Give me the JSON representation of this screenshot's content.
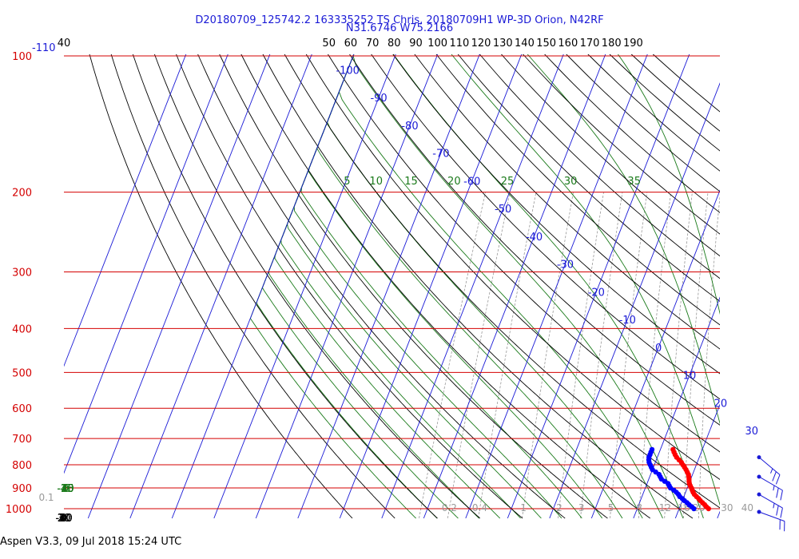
{
  "header": {
    "title_line1": "D20180709_125742.2 163335252 TS Chris, 20180709H1 WP-3D Orion, N42RF",
    "title_line2": "N31.6746 W75.2166"
  },
  "footer": {
    "text": "Aspen V3.3, 09 Jul 2018  15:24 UTC"
  },
  "colors": {
    "isobar": "#d40000",
    "isotherm": "#1a1ad6",
    "dry_adiabat": "#000000",
    "moist_adiabat": "#1a7a1a",
    "mixing_ratio": "#999999",
    "temperature_trace": "#ff0000",
    "dewpoint_trace": "#0000ff",
    "wind_barb": "#1a1ad6"
  },
  "chart_data": {
    "type": "skew-t log-p",
    "pressure_axis": {
      "unit": "hPa",
      "scale": "log",
      "range": [
        1000,
        100
      ],
      "ticks": [
        100,
        200,
        300,
        400,
        500,
        600,
        700,
        800,
        900,
        1000
      ]
    },
    "isotherms": {
      "labels": [
        "-110",
        "-100",
        "-90",
        "-80",
        "-70",
        "-60",
        "-50",
        "-40",
        "-30",
        "-20",
        "-10",
        "0",
        "10",
        "20",
        "30"
      ]
    },
    "dry_adiabats": {
      "top_labels": [
        "40",
        "50",
        "60",
        "70",
        "80",
        "90",
        "100",
        "110",
        "120",
        "130",
        "140",
        "150",
        "160",
        "170",
        "180",
        "190"
      ],
      "left_labels": [
        "30",
        "20",
        "10",
        "0",
        "-10",
        "-20",
        "-30",
        "-40"
      ]
    },
    "moist_adiabats": {
      "top_labels": [
        "5",
        "10",
        "15",
        "20",
        "25",
        "30",
        "35"
      ],
      "left_labels": [
        "0",
        "-5",
        "-10",
        "-15",
        "-20",
        "-25",
        "-30",
        "-35",
        "-40"
      ]
    },
    "mixing_ratio_lines": {
      "labels": [
        "0.1",
        "0.2",
        "0.4",
        "1",
        "2",
        "3",
        "5",
        "8",
        "12",
        "16",
        "20",
        "30",
        "40"
      ]
    },
    "temperature_profile": [
      {
        "p": 1000,
        "t": 27.0
      },
      {
        "p": 990,
        "t": 26.3
      },
      {
        "p": 980,
        "t": 25.7
      },
      {
        "p": 970,
        "t": 25.0
      },
      {
        "p": 960,
        "t": 24.3
      },
      {
        "p": 950,
        "t": 23.7
      },
      {
        "p": 940,
        "t": 23.0
      },
      {
        "p": 930,
        "t": 22.3
      },
      {
        "p": 920,
        "t": 21.8
      },
      {
        "p": 910,
        "t": 21.4
      },
      {
        "p": 900,
        "t": 21.0
      },
      {
        "p": 890,
        "t": 20.5
      },
      {
        "p": 880,
        "t": 20.1
      },
      {
        "p": 870,
        "t": 19.8
      },
      {
        "p": 860,
        "t": 19.6
      },
      {
        "p": 850,
        "t": 19.3
      },
      {
        "p": 840,
        "t": 19.0
      },
      {
        "p": 830,
        "t": 18.5
      },
      {
        "p": 820,
        "t": 18.0
      },
      {
        "p": 810,
        "t": 17.4
      },
      {
        "p": 800,
        "t": 16.8
      },
      {
        "p": 790,
        "t": 16.2
      },
      {
        "p": 780,
        "t": 15.4
      },
      {
        "p": 770,
        "t": 14.6
      },
      {
        "p": 760,
        "t": 14.0
      },
      {
        "p": 750,
        "t": 13.5
      },
      {
        "p": 740,
        "t": 13.0
      }
    ],
    "dewpoint_profile": [
      {
        "p": 1000,
        "td": 23.5
      },
      {
        "p": 990,
        "td": 22.8
      },
      {
        "p": 980,
        "td": 22.0
      },
      {
        "p": 970,
        "td": 21.3
      },
      {
        "p": 960,
        "td": 20.5
      },
      {
        "p": 950,
        "td": 19.8
      },
      {
        "p": 940,
        "td": 19.0
      },
      {
        "p": 930,
        "td": 18.5
      },
      {
        "p": 920,
        "td": 17.8
      },
      {
        "p": 910,
        "td": 17.0
      },
      {
        "p": 900,
        "td": 16.0
      },
      {
        "p": 890,
        "td": 15.5
      },
      {
        "p": 880,
        "td": 15.0
      },
      {
        "p": 870,
        "td": 14.0
      },
      {
        "p": 860,
        "td": 13.0
      },
      {
        "p": 850,
        "td": 12.5
      },
      {
        "p": 840,
        "td": 12.0
      },
      {
        "p": 830,
        "td": 11.0
      },
      {
        "p": 820,
        "td": 10.0
      },
      {
        "p": 810,
        "td": 9.5
      },
      {
        "p": 800,
        "td": 9.0
      },
      {
        "p": 790,
        "td": 8.5
      },
      {
        "p": 780,
        "td": 8.2
      },
      {
        "p": 770,
        "td": 8.0
      },
      {
        "p": 760,
        "td": 8.0
      },
      {
        "p": 750,
        "td": 8.0
      },
      {
        "p": 740,
        "td": 8.0
      }
    ],
    "wind_barbs": [
      {
        "p": 1000,
        "dir": 110,
        "speed": 20
      },
      {
        "p": 930,
        "dir": 120,
        "speed": 25
      },
      {
        "p": 850,
        "dir": 120,
        "speed": 25
      },
      {
        "p": 770,
        "dir": 130,
        "speed": 25
      }
    ]
  }
}
